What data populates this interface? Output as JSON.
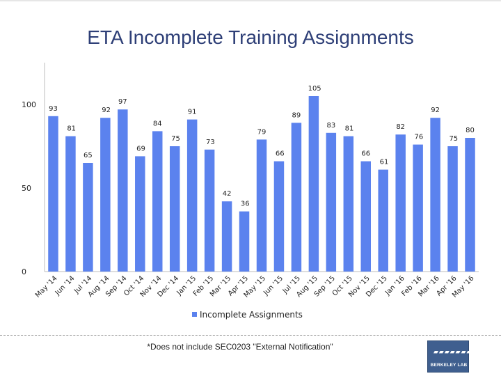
{
  "chart_data": {
    "type": "bar",
    "title": "ETA Incomplete Training Assignments",
    "categories": [
      "May '14",
      "Jun '14",
      "Jul '14",
      "Aug '14",
      "Sep '14",
      "Oct '14",
      "Nov '14",
      "Dec '14",
      "Jan '15",
      "Feb '15",
      "Mar '15",
      "Apr '15",
      "May '15",
      "Jun '15",
      "Jul '15",
      "Aug '15",
      "Sep '15",
      "Oct '15",
      "Nov '15",
      "Dec '15",
      "Jan '16",
      "Feb '16",
      "Mar '16",
      "Apr '16",
      "May '16"
    ],
    "series": [
      {
        "name": "Incomplete Assignments",
        "values": [
          93,
          81,
          65,
          92,
          97,
          69,
          84,
          75,
          91,
          73,
          42,
          36,
          79,
          66,
          89,
          105,
          83,
          81,
          66,
          61,
          82,
          76,
          92,
          75,
          80
        ]
      }
    ],
    "yticks": [
      0,
      50,
      100
    ],
    "ylim": [
      0,
      125
    ],
    "xlabel": "",
    "ylabel": "",
    "legend": "bottom-center",
    "bar_color": "#5b82ee"
  },
  "footnote": "*Does not include SEC0203 \"External Notification\"",
  "logo": {
    "text": "BERKELEY LAB"
  }
}
